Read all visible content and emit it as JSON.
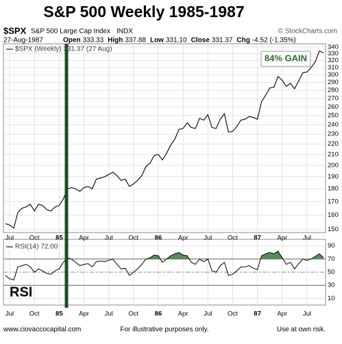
{
  "chart_data": {
    "type": "line",
    "title": "S&P 500 Weekly 1985-1987",
    "symbol": "$SPX",
    "name": "S&P 500 Large Cap Index",
    "exchange": "INDX",
    "source": "© StockCharts.com",
    "date": "27-Aug-1987",
    "quote": [
      {
        "label": "Open",
        "value": "333.33"
      },
      {
        "label": "High",
        "value": "337.88"
      },
      {
        "label": "Low",
        "value": "331.10"
      },
      {
        "label": "Close",
        "value": "331.37"
      },
      {
        "label": "Chg",
        "value": "-4.52 (-1.35%)"
      }
    ],
    "legend_label": "$SPX (Weekly) 331.37 (27 Aug)",
    "annotation": "84% GAIN",
    "log_scale": true,
    "grid": true,
    "categories": [
      null,
      "Jul",
      null,
      null,
      null,
      null,
      null,
      "Oct",
      null,
      null,
      null,
      null,
      null,
      "85",
      null,
      null,
      null,
      null,
      null,
      "Apr",
      null,
      null,
      null,
      null,
      null,
      "Jul",
      null,
      null,
      null,
      null,
      null,
      "Oct",
      null,
      null,
      null,
      null,
      null,
      "86",
      null,
      null,
      null,
      null,
      null,
      "Apr",
      null,
      null,
      null,
      null,
      null,
      "Jul",
      null,
      null,
      null,
      null,
      null,
      "Oct",
      null,
      null,
      null,
      null,
      null,
      "87",
      null,
      null,
      null,
      null,
      null,
      "Apr",
      null,
      null,
      null,
      null,
      null,
      "Jul",
      null,
      null,
      null,
      null
    ],
    "series": [
      {
        "name": "$SPX",
        "color": "#000000",
        "values": [
          154,
          153,
          151,
          162,
          165,
          166,
          168,
          163,
          168,
          167,
          164,
          163,
          166,
          167,
          172,
          180,
          181,
          180,
          178,
          181,
          182,
          180,
          188,
          189,
          190,
          192,
          194,
          191,
          187,
          188,
          182,
          184,
          187,
          191,
          199,
          202,
          209,
          210,
          205,
          211,
          219,
          225,
          235,
          236,
          242,
          237,
          236,
          247,
          245,
          251,
          237,
          236,
          246,
          252,
          232,
          233,
          238,
          245,
          246,
          249,
          248,
          246,
          266,
          274,
          283,
          284,
          298,
          293,
          285,
          289,
          282,
          292,
          303,
          304,
          310,
          318,
          334,
          331.37
        ]
      }
    ],
    "ylim": [
      148,
      345
    ],
    "yticks": [
      150,
      160,
      170,
      180,
      190,
      200,
      210,
      220,
      230,
      240,
      250,
      260,
      270,
      280,
      290,
      300,
      310,
      320,
      330,
      340
    ],
    "rsi": {
      "label": "RSI(14) 72.00",
      "annotation": "RSI",
      "color": "#000000",
      "fill": "#5a8a5a",
      "overbought": 70,
      "values": [
        45,
        40,
        38,
        58,
        60,
        62,
        58,
        50,
        55,
        52,
        48,
        47,
        52,
        55,
        65,
        72,
        70,
        65,
        60,
        62,
        63,
        58,
        66,
        67,
        66,
        68,
        70,
        62,
        55,
        56,
        45,
        50,
        55,
        62,
        70,
        72,
        76,
        75,
        65,
        70,
        75,
        78,
        80,
        76,
        75,
        65,
        62,
        70,
        66,
        70,
        52,
        50,
        60,
        65,
        45,
        47,
        52,
        58,
        58,
        60,
        56,
        54,
        75,
        78,
        80,
        78,
        82,
        72,
        62,
        65,
        55,
        63,
        70,
        68,
        70,
        74,
        78,
        72
      ],
      "ylim": [
        0,
        100
      ],
      "yticks": [
        10,
        30,
        50,
        70,
        90
      ]
    },
    "footer": {
      "left": "www.ciovaccocapital.com",
      "center": "For illustrative purposes only.",
      "right": "Use at own risk."
    }
  }
}
